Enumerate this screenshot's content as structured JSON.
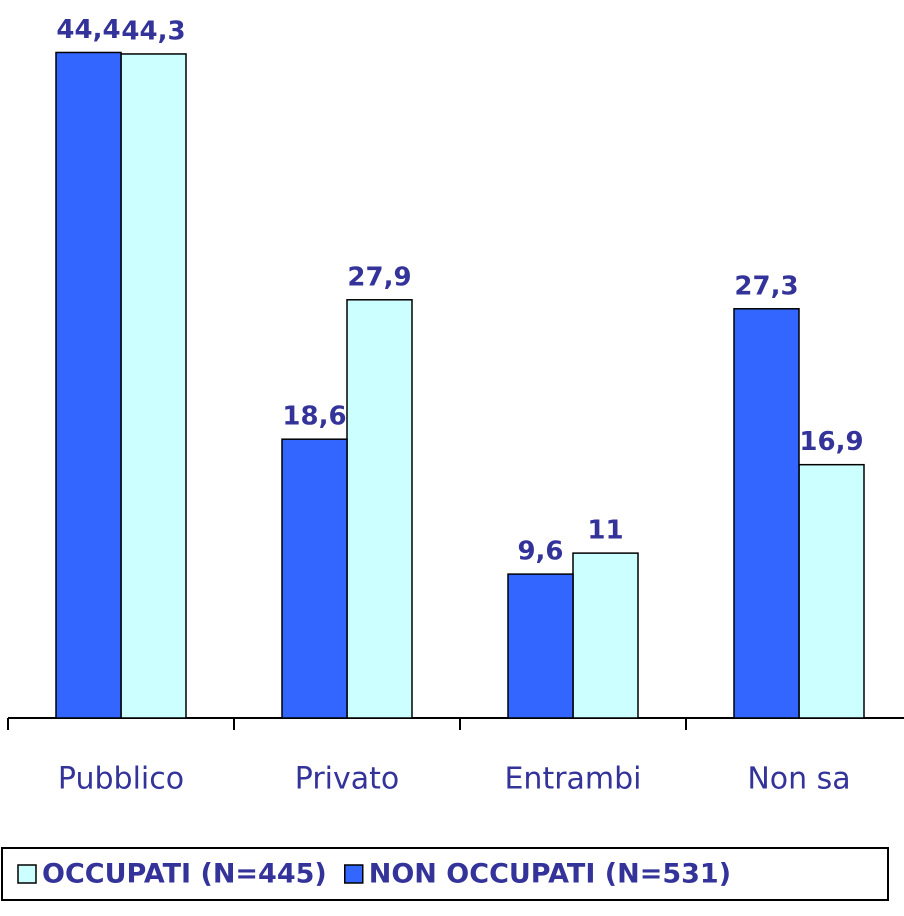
{
  "chart_data": {
    "type": "bar",
    "categories": [
      "Pubblico",
      "Privato",
      "Entrambi",
      "Non sa"
    ],
    "series": [
      {
        "name": "OCCUPATI (N=445)",
        "color": "#ccffff",
        "values": [
          44.3,
          27.9,
          11,
          16.9
        ],
        "value_labels": [
          "44,3",
          "27,9",
          "11",
          "16,9"
        ]
      },
      {
        "name": "NON OCCUPATI (N=531)",
        "color": "#3366ff",
        "values": [
          44.4,
          18.6,
          9.6,
          27.3
        ],
        "value_labels": [
          "44,4",
          "18,6",
          "9,6",
          "27,3"
        ]
      }
    ],
    "ylim": [
      0,
      47.9
    ],
    "legend": "bottom"
  }
}
